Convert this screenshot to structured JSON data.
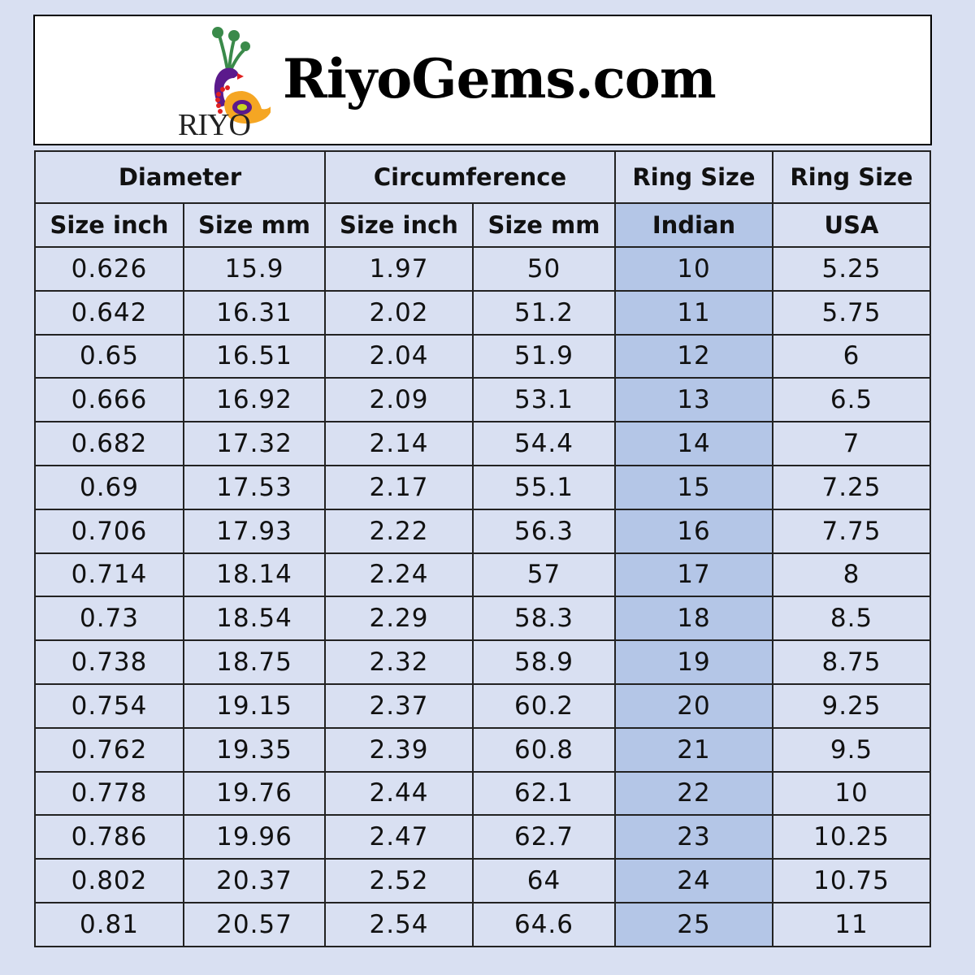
{
  "brand": {
    "logo_text": "RIYO",
    "title": "RiyoGems.com"
  },
  "table": {
    "group_headers": [
      "Diameter",
      "Circumference",
      "Ring Size",
      "Ring Size"
    ],
    "sub_headers": [
      "Size inch",
      "Size mm",
      "Size inch",
      "Size mm",
      "Indian",
      "USA"
    ],
    "highlight_color": "#b4c6e7",
    "rows": [
      [
        "0.626",
        "15.9",
        "1.97",
        "50",
        "10",
        "5.25"
      ],
      [
        "0.642",
        "16.31",
        "2.02",
        "51.2",
        "11",
        "5.75"
      ],
      [
        "0.65",
        "16.51",
        "2.04",
        "51.9",
        "12",
        "6"
      ],
      [
        "0.666",
        "16.92",
        "2.09",
        "53.1",
        "13",
        "6.5"
      ],
      [
        "0.682",
        "17.32",
        "2.14",
        "54.4",
        "14",
        "7"
      ],
      [
        "0.69",
        "17.53",
        "2.17",
        "55.1",
        "15",
        "7.25"
      ],
      [
        "0.706",
        "17.93",
        "2.22",
        "56.3",
        "16",
        "7.75"
      ],
      [
        "0.714",
        "18.14",
        "2.24",
        "57",
        "17",
        "8"
      ],
      [
        "0.73",
        "18.54",
        "2.29",
        "58.3",
        "18",
        "8.5"
      ],
      [
        "0.738",
        "18.75",
        "2.32",
        "58.9",
        "19",
        "8.75"
      ],
      [
        "0.754",
        "19.15",
        "2.37",
        "60.2",
        "20",
        "9.25"
      ],
      [
        "0.762",
        "19.35",
        "2.39",
        "60.8",
        "21",
        "9.5"
      ],
      [
        "0.778",
        "19.76",
        "2.44",
        "62.1",
        "22",
        "10"
      ],
      [
        "0.786",
        "19.96",
        "2.47",
        "62.7",
        "23",
        "10.25"
      ],
      [
        "0.802",
        "20.37",
        "2.52",
        "64",
        "24",
        "10.75"
      ],
      [
        "0.81",
        "20.57",
        "2.54",
        "64.6",
        "25",
        "11"
      ]
    ]
  }
}
